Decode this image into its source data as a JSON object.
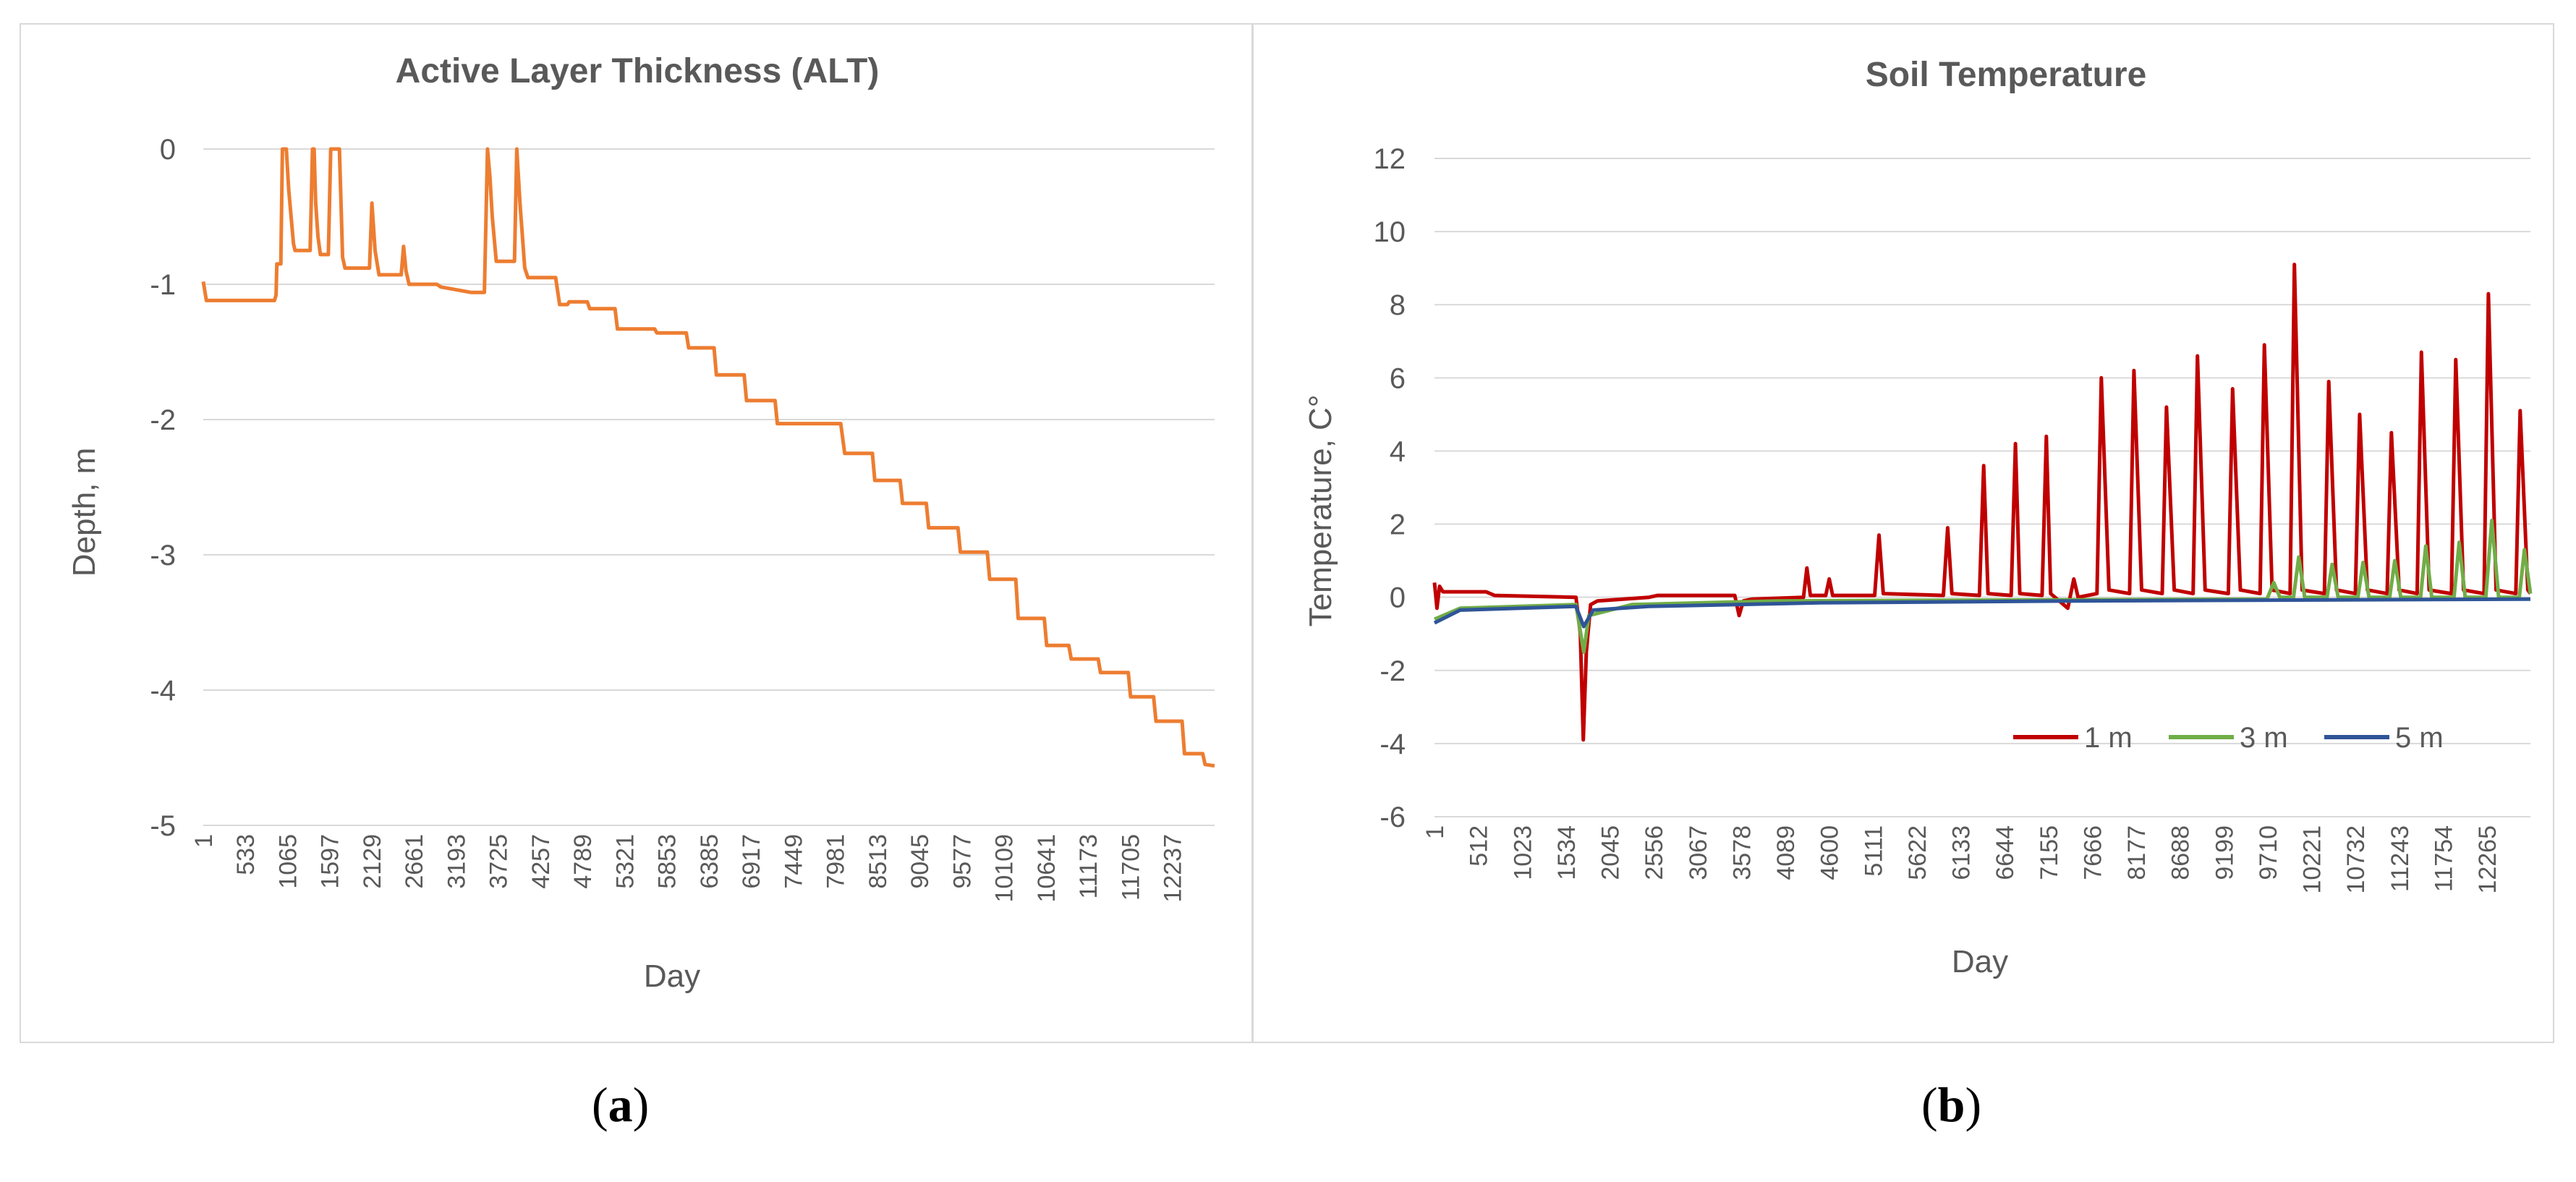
{
  "figure": {
    "caption_a": "a",
    "caption_b": "b"
  },
  "chart_data": [
    {
      "type": "line",
      "title": "Active Layer Thickness (ALT)",
      "xlabel": "Day",
      "ylabel": "Depth, m",
      "ylim": [
        -5,
        0
      ],
      "yticks": [
        0,
        -1,
        -2,
        -3,
        -4,
        -5
      ],
      "xlim": [
        1,
        12770
      ],
      "xticks": [
        1,
        533,
        1065,
        1597,
        2129,
        2661,
        3193,
        3725,
        4257,
        4789,
        5321,
        5853,
        6385,
        6917,
        7449,
        7981,
        8513,
        9045,
        9577,
        10109,
        10641,
        11173,
        11705,
        12237
      ],
      "series": [
        {
          "name": "ALT",
          "color": "#ED7D31",
          "points": [
            [
              1,
              -0.98
            ],
            [
              40,
              -1.12
            ],
            [
              900,
              -1.12
            ],
            [
              920,
              -1.08
            ],
            [
              930,
              -0.85
            ],
            [
              980,
              -0.85
            ],
            [
              1000,
              0
            ],
            [
              1050,
              0
            ],
            [
              1080,
              -0.3
            ],
            [
              1140,
              -0.7
            ],
            [
              1160,
              -0.75
            ],
            [
              1350,
              -0.75
            ],
            [
              1380,
              0
            ],
            [
              1400,
              0
            ],
            [
              1420,
              -0.4
            ],
            [
              1450,
              -0.65
            ],
            [
              1480,
              -0.78
            ],
            [
              1580,
              -0.78
            ],
            [
              1610,
              0
            ],
            [
              1720,
              0
            ],
            [
              1760,
              -0.8
            ],
            [
              1790,
              -0.88
            ],
            [
              2100,
              -0.88
            ],
            [
              2130,
              -0.4
            ],
            [
              2170,
              -0.75
            ],
            [
              2220,
              -0.93
            ],
            [
              2500,
              -0.93
            ],
            [
              2530,
              -0.72
            ],
            [
              2560,
              -0.9
            ],
            [
              2600,
              -1.0
            ],
            [
              2950,
              -1.0
            ],
            [
              3000,
              -1.02
            ],
            [
              3380,
              -1.06
            ],
            [
              3550,
              -1.06
            ],
            [
              3590,
              0
            ],
            [
              3620,
              -0.2
            ],
            [
              3650,
              -0.5
            ],
            [
              3700,
              -0.83
            ],
            [
              3930,
              -0.83
            ],
            [
              3960,
              0
            ],
            [
              4000,
              -0.4
            ],
            [
              4060,
              -0.88
            ],
            [
              4100,
              -0.95
            ],
            [
              4450,
              -0.95
            ],
            [
              4500,
              -1.15
            ],
            [
              4600,
              -1.15
            ],
            [
              4620,
              -1.13
            ],
            [
              4850,
              -1.13
            ],
            [
              4880,
              -1.18
            ],
            [
              5200,
              -1.18
            ],
            [
              5230,
              -1.33
            ],
            [
              5700,
              -1.33
            ],
            [
              5730,
              -1.36
            ],
            [
              6100,
              -1.36
            ],
            [
              6130,
              -1.47
            ],
            [
              6450,
              -1.47
            ],
            [
              6480,
              -1.67
            ],
            [
              6830,
              -1.67
            ],
            [
              6860,
              -1.86
            ],
            [
              7220,
              -1.86
            ],
            [
              7250,
              -2.03
            ],
            [
              8050,
              -2.03
            ],
            [
              8100,
              -2.25
            ],
            [
              8450,
              -2.25
            ],
            [
              8480,
              -2.45
            ],
            [
              8800,
              -2.45
            ],
            [
              8830,
              -2.62
            ],
            [
              9130,
              -2.62
            ],
            [
              9160,
              -2.8
            ],
            [
              9530,
              -2.8
            ],
            [
              9560,
              -2.98
            ],
            [
              9900,
              -2.98
            ],
            [
              9930,
              -3.18
            ],
            [
              10260,
              -3.18
            ],
            [
              10290,
              -3.47
            ],
            [
              10620,
              -3.47
            ],
            [
              10650,
              -3.67
            ],
            [
              10930,
              -3.67
            ],
            [
              10960,
              -3.77
            ],
            [
              11300,
              -3.77
            ],
            [
              11330,
              -3.87
            ],
            [
              11680,
              -3.87
            ],
            [
              11710,
              -4.05
            ],
            [
              12000,
              -4.05
            ],
            [
              12030,
              -4.23
            ],
            [
              12360,
              -4.23
            ],
            [
              12390,
              -4.47
            ],
            [
              12620,
              -4.47
            ],
            [
              12650,
              -4.55
            ],
            [
              12770,
              -4.56
            ]
          ]
        }
      ]
    },
    {
      "type": "line",
      "title": "Soil Temperature",
      "xlabel": "Day",
      "ylabel": "Temperature, C°",
      "ylim": [
        -6,
        12
      ],
      "yticks": [
        12,
        10,
        8,
        6,
        4,
        2,
        0,
        -2,
        -4,
        -6
      ],
      "xlim": [
        1,
        12770
      ],
      "xticks": [
        1,
        512,
        1023,
        1534,
        2045,
        2556,
        3067,
        3578,
        4089,
        4600,
        5111,
        5622,
        6133,
        6644,
        7155,
        7666,
        8177,
        8688,
        9199,
        9710,
        10221,
        10732,
        11243,
        11754,
        12265
      ],
      "legend": {
        "placement": "bottom-right",
        "entries": [
          "1 m",
          "3 m",
          "5 m"
        ]
      },
      "series": [
        {
          "name": "1 m",
          "color": "#C00000",
          "points": [
            [
              1,
              0.4
            ],
            [
              30,
              -0.3
            ],
            [
              60,
              0.3
            ],
            [
              100,
              0.15
            ],
            [
              600,
              0.15
            ],
            [
              700,
              0.05
            ],
            [
              1650,
              0
            ],
            [
              1700,
              -1.0
            ],
            [
              1735,
              -3.9
            ],
            [
              1770,
              -1.5
            ],
            [
              1820,
              -0.2
            ],
            [
              1900,
              -0.1
            ],
            [
              2500,
              0
            ],
            [
              2600,
              0.05
            ],
            [
              3500,
              0.05
            ],
            [
              3550,
              -0.5
            ],
            [
              3600,
              -0.1
            ],
            [
              3700,
              -0.05
            ],
            [
              4300,
              0
            ],
            [
              4340,
              0.8
            ],
            [
              4380,
              0.05
            ],
            [
              4560,
              0.05
            ],
            [
              4600,
              0.5
            ],
            [
              4640,
              0.05
            ],
            [
              5130,
              0.05
            ],
            [
              5180,
              1.7
            ],
            [
              5230,
              0.1
            ],
            [
              5930,
              0.05
            ],
            [
              5980,
              1.9
            ],
            [
              6030,
              0.1
            ],
            [
              6350,
              0.05
            ],
            [
              6400,
              3.6
            ],
            [
              6450,
              0.1
            ],
            [
              6720,
              0.05
            ],
            [
              6770,
              4.2
            ],
            [
              6820,
              0.1
            ],
            [
              7080,
              0.05
            ],
            [
              7130,
              4.4
            ],
            [
              7180,
              0.1
            ],
            [
              7380,
              -0.3
            ],
            [
              7450,
              0.5
            ],
            [
              7500,
              0
            ],
            [
              7720,
              0.1
            ],
            [
              7770,
              6.0
            ],
            [
              7860,
              0.2
            ],
            [
              8100,
              0.1
            ],
            [
              8150,
              6.2
            ],
            [
              8240,
              0.2
            ],
            [
              8480,
              0.1
            ],
            [
              8530,
              5.2
            ],
            [
              8620,
              0.2
            ],
            [
              8840,
              0.1
            ],
            [
              8890,
              6.6
            ],
            [
              8980,
              0.2
            ],
            [
              9250,
              0.1
            ],
            [
              9300,
              5.7
            ],
            [
              9390,
              0.2
            ],
            [
              9620,
              0.1
            ],
            [
              9670,
              6.9
            ],
            [
              9760,
              0.2
            ],
            [
              9970,
              0.1
            ],
            [
              10020,
              9.1
            ],
            [
              10110,
              0.2
            ],
            [
              10370,
              0.1
            ],
            [
              10420,
              5.9
            ],
            [
              10510,
              0.2
            ],
            [
              10730,
              0.1
            ],
            [
              10780,
              5.0
            ],
            [
              10870,
              0.2
            ],
            [
              11100,
              0.1
            ],
            [
              11150,
              4.5
            ],
            [
              11240,
              0.2
            ],
            [
              11450,
              0.1
            ],
            [
              11500,
              6.7
            ],
            [
              11590,
              0.2
            ],
            [
              11850,
              0.1
            ],
            [
              11900,
              6.5
            ],
            [
              11990,
              0.2
            ],
            [
              12230,
              0.1
            ],
            [
              12280,
              8.3
            ],
            [
              12370,
              0.2
            ],
            [
              12600,
              0.1
            ],
            [
              12650,
              5.1
            ],
            [
              12740,
              0.2
            ],
            [
              12770,
              0.1
            ]
          ]
        },
        {
          "name": "3 m",
          "color": "#70AD47",
          "points": [
            [
              1,
              -0.6
            ],
            [
              300,
              -0.3
            ],
            [
              1650,
              -0.2
            ],
            [
              1740,
              -1.5
            ],
            [
              1800,
              -0.5
            ],
            [
              2300,
              -0.2
            ],
            [
              4000,
              -0.1
            ],
            [
              9700,
              -0.05
            ],
            [
              9780,
              0.4
            ],
            [
              9850,
              0
            ],
            [
              10010,
              0
            ],
            [
              10070,
              1.1
            ],
            [
              10140,
              0
            ],
            [
              10400,
              0
            ],
            [
              10460,
              0.9
            ],
            [
              10530,
              0
            ],
            [
              10760,
              0
            ],
            [
              10820,
              0.95
            ],
            [
              10890,
              0
            ],
            [
              11130,
              0
            ],
            [
              11190,
              1.0
            ],
            [
              11260,
              0
            ],
            [
              11490,
              0
            ],
            [
              11550,
              1.4
            ],
            [
              11620,
              0
            ],
            [
              11880,
              0
            ],
            [
              11940,
              1.5
            ],
            [
              12010,
              0
            ],
            [
              12250,
              0
            ],
            [
              12320,
              2.1
            ],
            [
              12400,
              0
            ],
            [
              12640,
              0
            ],
            [
              12700,
              1.3
            ],
            [
              12770,
              0.1
            ]
          ]
        },
        {
          "name": "5 m",
          "color": "#2F5597",
          "points": [
            [
              1,
              -0.7
            ],
            [
              300,
              -0.35
            ],
            [
              1650,
              -0.25
            ],
            [
              1740,
              -0.8
            ],
            [
              1850,
              -0.35
            ],
            [
              2500,
              -0.25
            ],
            [
              4500,
              -0.15
            ],
            [
              7500,
              -0.1
            ],
            [
              12770,
              -0.05
            ]
          ]
        }
      ]
    }
  ]
}
